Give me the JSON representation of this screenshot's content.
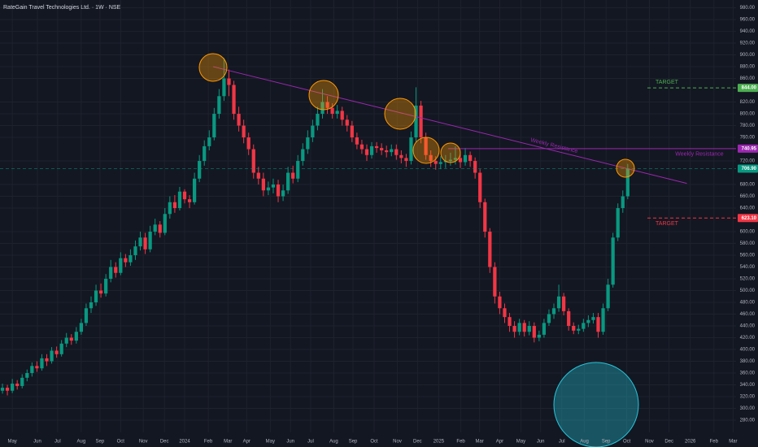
{
  "chart_data": {
    "type": "candlestick",
    "title": "RateGain Travel Technologies Ltd. · 1W · NSE",
    "up_color": "#089981",
    "down_color": "#f23645",
    "open": [
      330,
      335,
      330,
      342,
      338,
      352,
      360,
      372,
      368,
      385,
      380,
      398,
      392,
      410,
      420,
      415,
      430,
      445,
      470,
      480,
      500,
      495,
      520,
      540,
      530,
      555,
      548,
      560,
      575,
      590,
      570,
      600,
      612,
      598,
      630,
      650,
      640,
      668,
      655,
      650,
      690,
      720,
      745,
      760,
      800,
      830,
      860,
      849,
      800,
      780,
      760,
      740,
      700,
      690,
      670,
      675,
      680,
      660,
      670,
      700,
      690,
      720,
      740,
      760,
      780,
      800,
      820,
      810,
      800,
      805,
      790,
      780,
      760,
      748,
      740,
      730,
      745,
      742,
      738,
      735,
      740,
      730,
      725,
      720,
      760,
      814,
      760,
      730,
      720,
      715,
      718,
      720,
      722,
      725,
      718,
      730,
      720,
      700,
      650,
      600,
      540,
      490,
      470,
      455,
      440,
      430,
      445,
      430,
      440,
      420,
      425,
      445,
      460,
      470,
      490,
      465,
      440,
      432,
      435,
      445,
      450,
      455,
      430,
      470,
      510,
      590,
      640,
      660
    ],
    "high": [
      342,
      340,
      350,
      348,
      358,
      366,
      378,
      380,
      392,
      392,
      404,
      405,
      416,
      428,
      426,
      438,
      452,
      478,
      490,
      510,
      512,
      528,
      552,
      548,
      565,
      562,
      570,
      585,
      600,
      598,
      610,
      622,
      618,
      640,
      660,
      662,
      676,
      672,
      662,
      700,
      730,
      755,
      772,
      810,
      842,
      895,
      875,
      856,
      812,
      790,
      768,
      748,
      710,
      700,
      685,
      690,
      688,
      680,
      710,
      712,
      730,
      750,
      772,
      790,
      812,
      842,
      830,
      818,
      815,
      812,
      798,
      788,
      768,
      756,
      748,
      752,
      752,
      750,
      746,
      748,
      748,
      738,
      732,
      770,
      845,
      822,
      768,
      738,
      728,
      728,
      730,
      734,
      745,
      732,
      742,
      736,
      726,
      706,
      656,
      606,
      548,
      498,
      478,
      462,
      448,
      452,
      450,
      448,
      446,
      432,
      452,
      468,
      478,
      510,
      496,
      470,
      446,
      442,
      452,
      458,
      462,
      462,
      478,
      520,
      598,
      648,
      670,
      715
    ],
    "low": [
      325,
      322,
      326,
      332,
      334,
      346,
      354,
      362,
      364,
      372,
      376,
      386,
      388,
      404,
      408,
      410,
      425,
      440,
      462,
      474,
      488,
      490,
      514,
      522,
      526,
      540,
      542,
      552,
      568,
      562,
      565,
      594,
      590,
      594,
      622,
      632,
      636,
      648,
      640,
      646,
      684,
      712,
      738,
      755,
      792,
      822,
      830,
      790,
      770,
      750,
      730,
      690,
      680,
      660,
      662,
      665,
      650,
      652,
      664,
      682,
      684,
      712,
      732,
      752,
      772,
      792,
      800,
      792,
      792,
      780,
      770,
      752,
      740,
      732,
      720,
      724,
      734,
      730,
      726,
      728,
      722,
      716,
      710,
      714,
      752,
      750,
      722,
      710,
      705,
      706,
      708,
      712,
      714,
      708,
      712,
      710,
      690,
      640,
      590,
      530,
      478,
      460,
      445,
      430,
      420,
      424,
      422,
      424,
      412,
      414,
      420,
      440,
      452,
      464,
      458,
      432,
      426,
      426,
      430,
      438,
      444,
      420,
      425,
      465,
      505,
      584,
      632,
      655
    ],
    "close": [
      335,
      330,
      342,
      338,
      352,
      360,
      372,
      368,
      385,
      380,
      398,
      392,
      410,
      420,
      415,
      430,
      445,
      470,
      480,
      500,
      495,
      520,
      540,
      530,
      555,
      548,
      560,
      575,
      590,
      570,
      600,
      612,
      598,
      630,
      650,
      640,
      668,
      655,
      650,
      690,
      720,
      745,
      760,
      800,
      830,
      860,
      849,
      800,
      780,
      760,
      740,
      700,
      690,
      670,
      675,
      680,
      660,
      670,
      700,
      690,
      720,
      740,
      760,
      780,
      800,
      820,
      810,
      800,
      805,
      790,
      780,
      760,
      748,
      740,
      730,
      745,
      742,
      738,
      735,
      740,
      730,
      725,
      720,
      760,
      814,
      760,
      730,
      720,
      715,
      718,
      720,
      722,
      725,
      718,
      730,
      720,
      700,
      650,
      600,
      540,
      490,
      470,
      455,
      440,
      430,
      445,
      430,
      440,
      420,
      425,
      445,
      460,
      470,
      490,
      465,
      440,
      432,
      435,
      445,
      450,
      455,
      430,
      470,
      510,
      590,
      640,
      660,
      706.9
    ],
    "xlim": [
      -0.5,
      149
    ],
    "ylim": [
      259.3,
      993.2
    ],
    "xticks": [
      {
        "value": 2.0,
        "label": "May"
      },
      {
        "value": 7.1,
        "label": "Jun"
      },
      {
        "value": 11.2,
        "label": "Jul"
      },
      {
        "value": 16.0,
        "label": "Aug"
      },
      {
        "value": 19.8,
        "label": "Sep"
      },
      {
        "value": 24.0,
        "label": "Oct"
      },
      {
        "value": 28.6,
        "label": "Nov"
      },
      {
        "value": 32.9,
        "label": "Dec"
      },
      {
        "value": 37.0,
        "label": "2024"
      },
      {
        "value": 41.8,
        "label": "Feb"
      },
      {
        "value": 45.8,
        "label": "Mar"
      },
      {
        "value": 49.6,
        "label": "Apr"
      },
      {
        "value": 54.4,
        "label": "May"
      },
      {
        "value": 58.5,
        "label": "Jun"
      },
      {
        "value": 62.6,
        "label": "Jul"
      },
      {
        "value": 67.3,
        "label": "Aug"
      },
      {
        "value": 71.2,
        "label": "Sep"
      },
      {
        "value": 75.5,
        "label": "Oct"
      },
      {
        "value": 80.2,
        "label": "Nov"
      },
      {
        "value": 84.3,
        "label": "Dec"
      },
      {
        "value": 88.6,
        "label": "2025"
      },
      {
        "value": 93.1,
        "label": "Feb"
      },
      {
        "value": 96.9,
        "label": "Mar"
      },
      {
        "value": 101.0,
        "label": "Apr"
      },
      {
        "value": 105.3,
        "label": "May"
      },
      {
        "value": 109.3,
        "label": "Jun"
      },
      {
        "value": 113.6,
        "label": "Jul"
      },
      {
        "value": 118.2,
        "label": "Aug"
      },
      {
        "value": 122.6,
        "label": "Sep"
      },
      {
        "value": 126.8,
        "label": "Oct"
      },
      {
        "value": 131.4,
        "label": "Nov"
      },
      {
        "value": 135.4,
        "label": "Dec"
      },
      {
        "value": 139.7,
        "label": "2026"
      },
      {
        "value": 144.5,
        "label": "Feb"
      },
      {
        "value": 148.4,
        "label": "Mar"
      }
    ],
    "yticks": [
      {
        "value": 280,
        "label": "280.00"
      },
      {
        "value": 300,
        "label": "300.00"
      },
      {
        "value": 320,
        "label": "320.00"
      },
      {
        "value": 340,
        "label": "340.00"
      },
      {
        "value": 360,
        "label": "360.00"
      },
      {
        "value": 380,
        "label": "380.00"
      },
      {
        "value": 400,
        "label": "400.00"
      },
      {
        "value": 420,
        "label": "420.00"
      },
      {
        "value": 440,
        "label": "440.00"
      },
      {
        "value": 460,
        "label": "460.00"
      },
      {
        "value": 480,
        "label": "480.00"
      },
      {
        "value": 500,
        "label": "500.00"
      },
      {
        "value": 520,
        "label": "520.00"
      },
      {
        "value": 540,
        "label": "540.00"
      },
      {
        "value": 560,
        "label": "560.00"
      },
      {
        "value": 580,
        "label": "580.00"
      },
      {
        "value": 600,
        "label": "600.00"
      },
      {
        "value": 640,
        "label": "640.00"
      },
      {
        "value": 660,
        "label": "660.00"
      },
      {
        "value": 680,
        "label": "680.00"
      },
      {
        "value": 720,
        "label": "720.00"
      },
      {
        "value": 760,
        "label": "760.00"
      },
      {
        "value": 780,
        "label": "780.00"
      },
      {
        "value": 800,
        "label": "800.00"
      },
      {
        "value": 820,
        "label": "820.00"
      },
      {
        "value": 860,
        "label": "860.00"
      },
      {
        "value": 880,
        "label": "880.00"
      },
      {
        "value": 900,
        "label": "900.00"
      },
      {
        "value": 920,
        "label": "920.00"
      },
      {
        "value": 940,
        "label": "940.00"
      },
      {
        "value": 960,
        "label": "960.00"
      },
      {
        "value": 980,
        "label": "980.00"
      }
    ],
    "grid": true,
    "price_lines": [
      {
        "value": 844,
        "label": "844.00",
        "color": "#4caf50",
        "dashed": true,
        "text": "TARGET"
      },
      {
        "value": 740.95,
        "label": "740.95",
        "color": "#9c27b0",
        "dashed": false,
        "text": "Weekly Resistance"
      },
      {
        "value": 706.9,
        "label": "706.90",
        "color": "#089981",
        "dashed": true
      },
      {
        "value": 623.1,
        "label": "623.10",
        "color": "#f23645",
        "dashed": true,
        "text": "TARGET"
      }
    ],
    "trendline": {
      "x": [
        42.8,
        139
      ],
      "y": [
        880,
        682
      ],
      "color": "#9c27b0",
      "text": "Weekly Resistance"
    }
  }
}
